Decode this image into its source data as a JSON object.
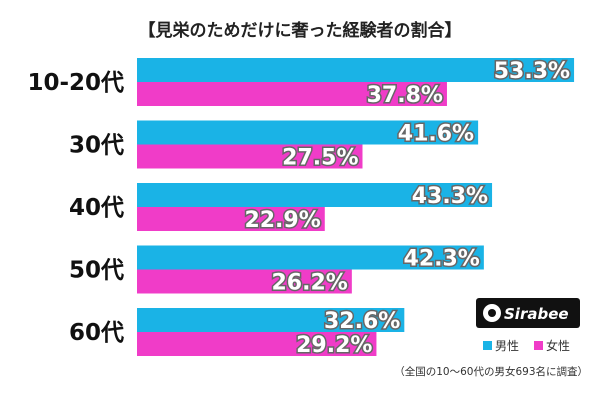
{
  "title": "【見栄のためだけに奢った経験者の割合】",
  "colors": {
    "male": "#1ab3e6",
    "female": "#f03cc8",
    "logo_bg": "#111111"
  },
  "logo": {
    "text": "Sirabee"
  },
  "legend": {
    "male": "男性",
    "female": "女性"
  },
  "footnote": "（全国の10～60代の男女693名に調査）",
  "chart_data": {
    "type": "bar",
    "orientation": "horizontal",
    "title": "【見栄のためだけに奢った経験者の割合】",
    "categories": [
      "10-20代",
      "30代",
      "40代",
      "50代",
      "60代"
    ],
    "series": [
      {
        "name": "男性",
        "values": [
          53.3,
          41.6,
          43.3,
          42.3,
          32.6
        ],
        "labels": [
          "53.3%",
          "41.6%",
          "43.3%",
          "42.3%",
          "32.6%"
        ]
      },
      {
        "name": "女性",
        "values": [
          37.8,
          27.5,
          22.9,
          26.2,
          29.2
        ],
        "labels": [
          "37.8%",
          "27.5%",
          "22.9%",
          "26.2%",
          "29.2%"
        ]
      }
    ],
    "xlim": [
      0,
      60
    ],
    "legend_position": "bottom-right",
    "grid": false
  }
}
